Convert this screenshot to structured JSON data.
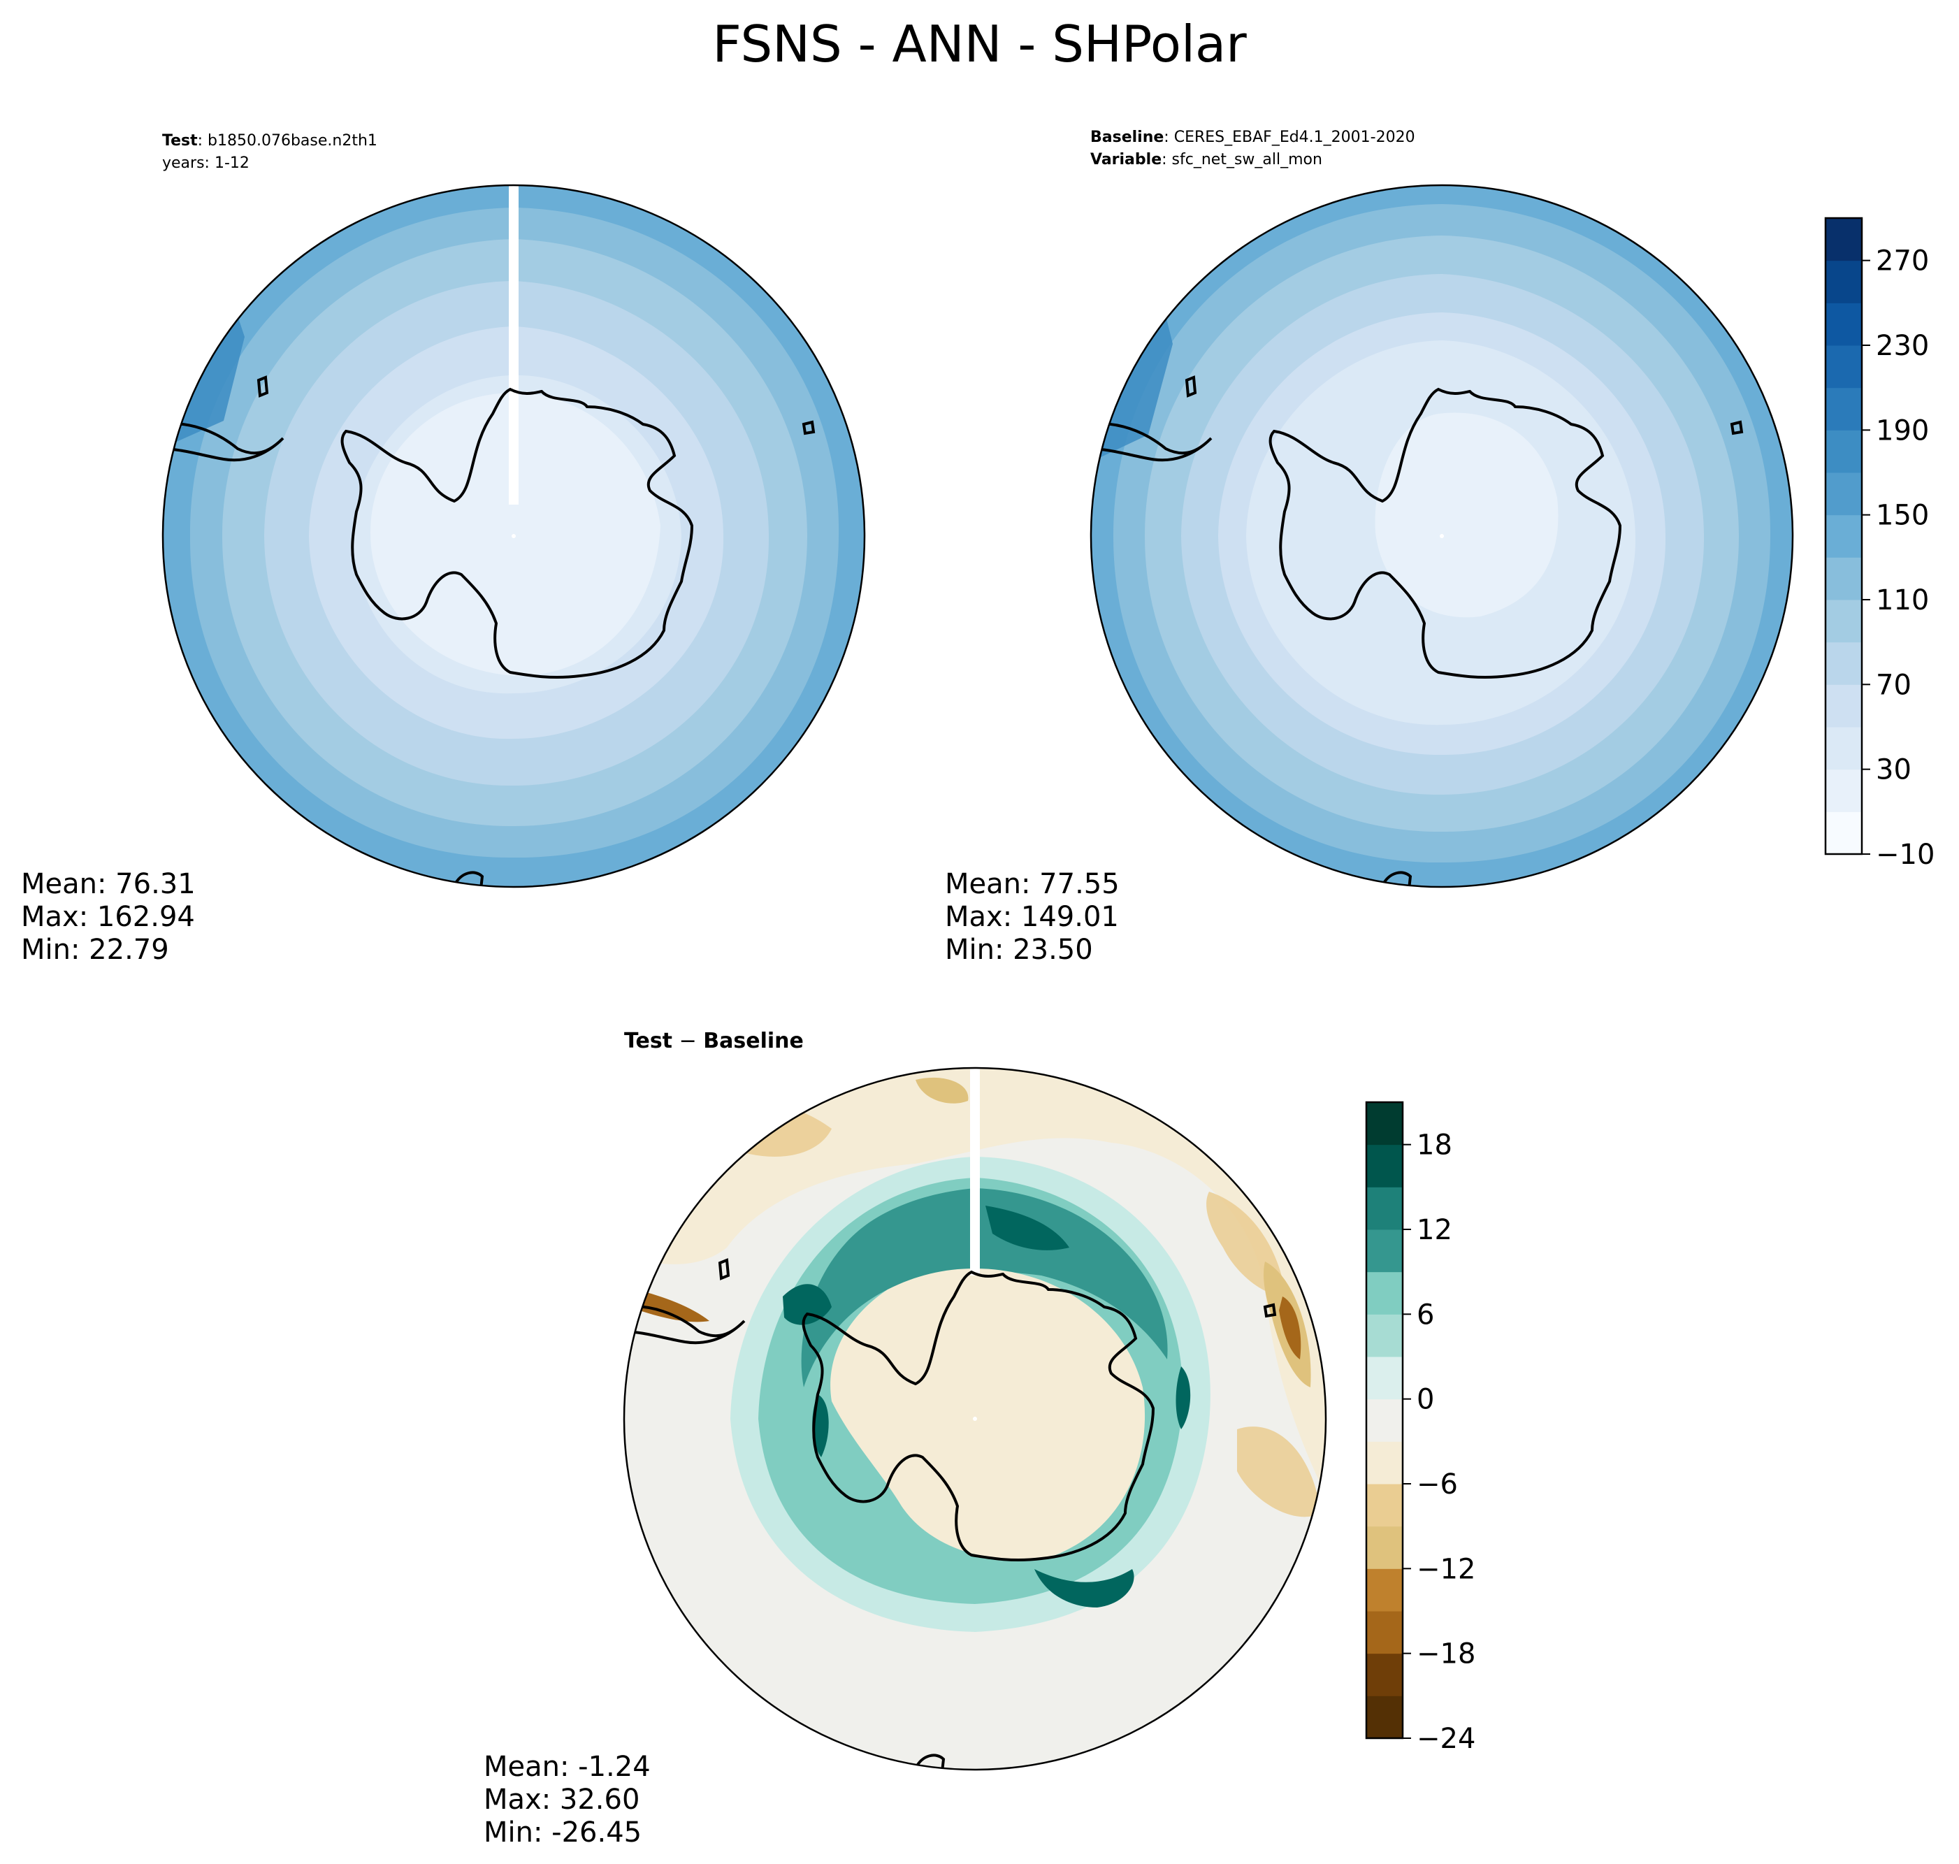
{
  "suptitle": "FSNS - ANN - SHPolar",
  "colors": {
    "blues": [
      "#f7fbff",
      "#e8f1fa",
      "#dbe9f6",
      "#cee0f2",
      "#bad6eb",
      "#a3cce3",
      "#88bedc",
      "#6aaed6",
      "#519ccc",
      "#3d8dc3",
      "#2b7bba",
      "#1b69af",
      "#0e58a2",
      "#08468b",
      "#08306b"
    ],
    "brbg": [
      "#543005",
      "#6f3e08",
      "#8c510a",
      "#a5671a",
      "#bf812d",
      "#d29f54",
      "#dfc27d",
      "#eacd92",
      "#f2e3bd",
      "#f5ecd6",
      "#f0f0ec",
      "#dbefed",
      "#c7eae5",
      "#a7dcd3",
      "#80cdc1",
      "#5bb3a8",
      "#35978f",
      "#1e8179",
      "#01665e",
      "#00564d",
      "#003c30"
    ],
    "coast": "#000000"
  },
  "test_panel": {
    "label_bold": "Test",
    "label_value": "b1850.076base.n2th1",
    "years": "years: 1-12",
    "stats": {
      "mean": "Mean: 76.31",
      "max": "Max: 162.94",
      "min": "Min: 22.79"
    }
  },
  "baseline_panel": {
    "label_bold": "Baseline",
    "label_value": "CERES_EBAF_Ed4.1_2001-2020",
    "variable_bold": "Variable",
    "variable_value": "sfc_net_sw_all_mon",
    "stats": {
      "mean": "Mean: 77.55",
      "max": "Max: 149.01",
      "min": "Min: 23.50"
    }
  },
  "diff_panel": {
    "title_left": "Test",
    "title_sep": " − ",
    "title_right": "Baseline",
    "stats": {
      "mean": "Mean: -1.24",
      "max": "Max: 32.60",
      "min": "Min: -26.45"
    }
  },
  "chart_data": [
    {
      "type": "heatmap",
      "projection": "south polar stereographic",
      "title": "Test: b1850.076base.n2th1",
      "levels": [
        -10,
        10,
        30,
        50,
        70,
        90,
        110,
        130,
        150,
        170,
        190,
        210,
        230,
        250,
        270,
        290
      ],
      "colorbar_ticks": [
        "270",
        "230",
        "190",
        "150",
        "110",
        "70",
        "30",
        "−10"
      ],
      "zonal_bands": [
        {
          "ring": 0.42,
          "value": 25
        },
        {
          "ring": 0.55,
          "value": 45
        },
        {
          "ring": 0.68,
          "value": 65
        },
        {
          "ring": 0.8,
          "value": 85
        },
        {
          "ring": 0.9,
          "value": 105
        },
        {
          "ring": 1.0,
          "value": 125
        }
      ],
      "stats": {
        "mean": 76.31,
        "max": 162.94,
        "min": 22.79
      }
    },
    {
      "type": "heatmap",
      "projection": "south polar stereographic",
      "title": "Baseline: CERES_EBAF_Ed4.1_2001-2020",
      "levels": [
        -10,
        10,
        30,
        50,
        70,
        90,
        110,
        130,
        150,
        170,
        190,
        210,
        230,
        250,
        270,
        290
      ],
      "colorbar_ticks": [
        "270",
        "230",
        "190",
        "150",
        "110",
        "70",
        "30",
        "−10"
      ],
      "zonal_bands": [
        {
          "ring": 0.45,
          "value": 25
        },
        {
          "ring": 0.58,
          "value": 45
        },
        {
          "ring": 0.7,
          "value": 65
        },
        {
          "ring": 0.82,
          "value": 85
        },
        {
          "ring": 0.92,
          "value": 105
        },
        {
          "ring": 1.0,
          "value": 120
        }
      ],
      "stats": {
        "mean": 77.55,
        "max": 149.01,
        "min": 23.5
      }
    },
    {
      "type": "heatmap",
      "projection": "south polar stereographic",
      "title": "Test − Baseline",
      "levels": [
        -24,
        -21,
        -18,
        -15,
        -12,
        -9,
        -6,
        -3,
        0,
        3,
        6,
        9,
        12,
        15,
        18,
        21
      ],
      "colorbar_ticks": [
        "18",
        "12",
        "6",
        "0",
        "−6",
        "−12",
        "−18",
        "−24"
      ],
      "stats": {
        "mean": -1.24,
        "max": 32.6,
        "min": -26.45
      }
    }
  ]
}
